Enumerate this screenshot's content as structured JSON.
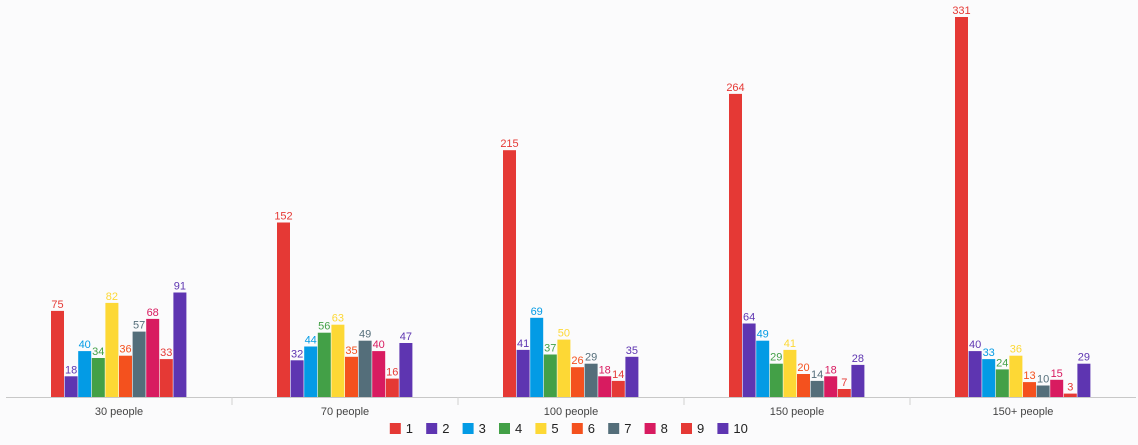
{
  "chart_data": {
    "type": "bar",
    "categories": [
      "30 people",
      "70 people",
      "100 people",
      "150 people",
      "150+ people"
    ],
    "series": [
      {
        "name": "1",
        "color": "#e53935",
        "values": [
          75,
          152,
          215,
          264,
          331
        ]
      },
      {
        "name": "2",
        "color": "#5e35b1",
        "values": [
          18,
          32,
          41,
          64,
          40
        ]
      },
      {
        "name": "3",
        "color": "#039be5",
        "values": [
          40,
          44,
          69,
          49,
          33
        ]
      },
      {
        "name": "4",
        "color": "#43a047",
        "values": [
          34,
          56,
          37,
          29,
          24
        ]
      },
      {
        "name": "5",
        "color": "#fdd835",
        "values": [
          82,
          63,
          50,
          41,
          36
        ]
      },
      {
        "name": "6",
        "color": "#f4511e",
        "values": [
          36,
          35,
          26,
          20,
          13
        ]
      },
      {
        "name": "7",
        "color": "#546e7a",
        "values": [
          57,
          49,
          29,
          14,
          10
        ]
      },
      {
        "name": "8",
        "color": "#d81b60",
        "values": [
          68,
          40,
          18,
          18,
          15
        ]
      },
      {
        "name": "9",
        "color": "#e53935",
        "values": [
          33,
          16,
          14,
          7,
          3
        ]
      },
      {
        "name": "10",
        "color": "#5e35b1",
        "values": [
          91,
          47,
          35,
          28,
          29
        ]
      }
    ],
    "ylim": [
      0,
      331
    ],
    "grid": false,
    "legend_position": "bottom-center",
    "show_data_labels": true
  }
}
